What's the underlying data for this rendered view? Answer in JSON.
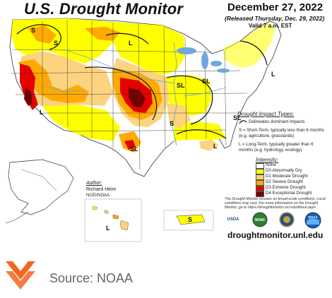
{
  "header": {
    "title": "U.S. Drought Monitor",
    "date": "December 27, 2022",
    "released": "(Released Thursday, Dec. 29, 2022)",
    "valid": "Valid 7 a.m. EST"
  },
  "map": {
    "impact_letters": [
      "S",
      "S",
      "L",
      "L",
      "SL",
      "SL",
      "L",
      "SL",
      "S",
      "SL",
      "L",
      "L",
      "S",
      "L"
    ],
    "colors": {
      "none": "#ffffff",
      "d0": "#ffff00",
      "d1": "#fcd37f",
      "d2": "#ffaa00",
      "d3": "#e60000",
      "d4": "#730000",
      "water": "#6fa8dc",
      "border": "#333333"
    }
  },
  "legend": {
    "impact_title": "Drought Impact Types:",
    "impact_items": [
      {
        "icon": "delineation-line-icon",
        "text": "Delineates dominant impacts"
      },
      {
        "text": "S = Short-Term, typically less than 6 months (e.g. agriculture, grasslands)"
      },
      {
        "text": "L = Long-Term, typically greater than 6 months (e.g. hydrology, ecology)"
      }
    ],
    "intensity_title": "Intensity:",
    "intensity_items": [
      {
        "label": "None",
        "color": "#ffffff"
      },
      {
        "label": "D0 Abnormally Dry",
        "color": "#ffff00"
      },
      {
        "label": "D1 Moderate Drought",
        "color": "#fcd37f"
      },
      {
        "label": "D2 Severe Drought",
        "color": "#ffaa00"
      },
      {
        "label": "D3 Extreme Drought",
        "color": "#e60000"
      },
      {
        "label": "D4 Exceptional Drought",
        "color": "#730000"
      }
    ]
  },
  "author": {
    "heading": "Author:",
    "name": "Richard Heim",
    "org": "NCEI/NOAA"
  },
  "note": "The Drought Monitor focuses on broad-scale conditions. Local conditions may vary. For more information on the Drought Monitor, go to https://droughtmonitor.unl.edu/About.aspx",
  "agencies": [
    {
      "name": "USDA",
      "icon": "usda-logo-icon"
    },
    {
      "name": "NDMC",
      "icon": "ndmc-logo-icon"
    },
    {
      "name": "",
      "icon": "doc-seal-icon"
    },
    {
      "name": "NOAA",
      "icon": "noaa-logo-icon"
    }
  ],
  "url": "droughtmonitor.unl.edu",
  "footer": {
    "source": "Source: NOAA",
    "logo_icon": "chevron-stack-logo-icon",
    "logo_color": "#f26522"
  }
}
